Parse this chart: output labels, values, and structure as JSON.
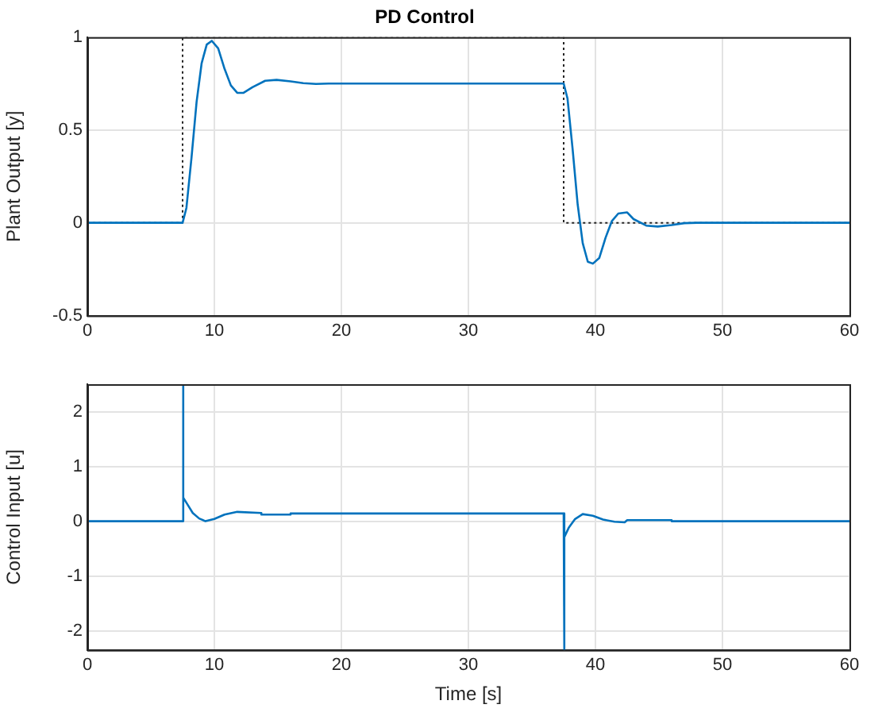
{
  "chart_data": [
    {
      "type": "line",
      "title": "PD Control",
      "ylabel": "Plant Output [y]",
      "xlim": [
        0,
        60
      ],
      "xticks": [
        0,
        10,
        20,
        30,
        40,
        50,
        60
      ],
      "ylim": [
        -0.5,
        1
      ],
      "yticks": [
        -0.5,
        0,
        0.5,
        1
      ],
      "grid": true,
      "marker": "none",
      "series": [
        {
          "color": "#0072bd",
          "line_style": "solid",
          "x": [
            0,
            7.5,
            7.8,
            8.2,
            8.6,
            9.0,
            9.4,
            9.8,
            10.3,
            10.8,
            11.3,
            11.8,
            12.3,
            13,
            14,
            14.9,
            16,
            17,
            18,
            19,
            37.5,
            37.8,
            38.2,
            38.6,
            39.0,
            39.4,
            39.8,
            40.3,
            40.8,
            41.3,
            41.8,
            42.5,
            43,
            44,
            44.9,
            46,
            47,
            48,
            60
          ],
          "values": [
            0,
            0,
            0.08,
            0.35,
            0.65,
            0.86,
            0.96,
            0.98,
            0.94,
            0.83,
            0.74,
            0.7,
            0.7,
            0.73,
            0.765,
            0.77,
            0.762,
            0.752,
            0.748,
            0.75,
            0.75,
            0.67,
            0.4,
            0.1,
            -0.11,
            -0.21,
            -0.22,
            -0.19,
            -0.08,
            0.01,
            0.05,
            0.056,
            0.02,
            -0.015,
            -0.02,
            -0.012,
            -0.002,
            0,
            0
          ]
        },
        {
          "color": "#262626",
          "line_style": "dotted",
          "x": [
            0,
            7.5,
            7.5,
            37.5,
            37.5,
            60
          ],
          "values": [
            0,
            0,
            1,
            1,
            0,
            0
          ]
        }
      ]
    },
    {
      "type": "line",
      "xlabel": "Time [s]",
      "ylabel": "Control Input [u]",
      "xlim": [
        0,
        60
      ],
      "xticks": [
        0,
        10,
        20,
        30,
        40,
        50,
        60
      ],
      "ylim": [
        -2.35,
        2.5
      ],
      "yticks": [
        -2,
        -1,
        0,
        1,
        2
      ],
      "grid": true,
      "marker": "none",
      "series": [
        {
          "color": "#0072bd",
          "line_style": "solid",
          "x": [
            0,
            7.5,
            7.5,
            7.6,
            7.9,
            8.3,
            8.8,
            9.3,
            10,
            10.8,
            11.8,
            13.7,
            13.7,
            16,
            16,
            37.5,
            37.5,
            37.6,
            37.9,
            38.4,
            39,
            39.8,
            40.6,
            41.5,
            42.3,
            42.5,
            46,
            46,
            60
          ],
          "values": [
            0,
            0,
            2.5,
            0.43,
            0.3,
            0.15,
            0.05,
            0,
            0.04,
            0.12,
            0.17,
            0.15,
            0.12,
            0.12,
            0.14,
            0.14,
            -2.35,
            -0.29,
            -0.12,
            0.04,
            0.13,
            0.1,
            0.03,
            -0.01,
            -0.02,
            0.02,
            0.02,
            0,
            0
          ]
        }
      ]
    }
  ]
}
